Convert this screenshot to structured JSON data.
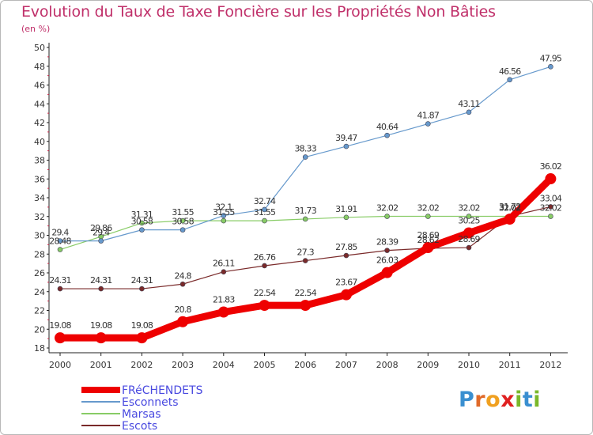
{
  "title": "Evolution du Taux de Taxe Foncière sur les Propriétés Non Bâties",
  "subtitle": "(en %)",
  "logo": {
    "text": "Proxiti",
    "letters": [
      {
        "ch": "P",
        "color": "#3a8fd0"
      },
      {
        "ch": "r",
        "color": "#e06a2a"
      },
      {
        "ch": "o",
        "color": "#f0a020"
      },
      {
        "ch": "x",
        "color": "#e02020"
      },
      {
        "ch": "i",
        "color": "#7ab82a"
      },
      {
        "ch": "t",
        "color": "#3a8fd0"
      },
      {
        "ch": "i",
        "color": "#7ab82a"
      }
    ]
  },
  "chart_data": {
    "type": "line",
    "title": "Evolution du Taux de Taxe Foncière sur les Propriétés Non Bâties",
    "ylabel": "(en %)",
    "x": [
      "2000",
      "2001",
      "2002",
      "2003",
      "2004",
      "2005",
      "2006",
      "2007",
      "2008",
      "2009",
      "2010",
      "2011",
      "2012"
    ],
    "ylim": [
      18,
      50
    ],
    "yticks": [
      18,
      20,
      22,
      24,
      26,
      28,
      30,
      32,
      34,
      36,
      38,
      40,
      42,
      44,
      46,
      48,
      50
    ],
    "grid": false,
    "legend": "bottom-left",
    "series": [
      {
        "name": "FRéCHENDETS",
        "color": "#ee0000",
        "values": [
          19.08,
          19.08,
          19.08,
          20.8,
          21.83,
          22.54,
          22.54,
          23.67,
          26.03,
          28.69,
          30.25,
          31.72,
          36.02
        ],
        "labels": [
          "19.08",
          "19.08",
          "19.08",
          "20.8",
          "21.83",
          "22.54",
          "22.54",
          "23.67",
          "26.03",
          "28.69",
          "30.25",
          "31.72",
          "36.02"
        ]
      },
      {
        "name": "Esconnets",
        "color": "#6699cc",
        "values": [
          29.4,
          29.4,
          30.58,
          30.58,
          32.1,
          32.74,
          38.33,
          39.47,
          40.64,
          41.87,
          43.11,
          46.56,
          47.95
        ],
        "labels": [
          "29.4",
          "29.4",
          "30.58",
          "30.58",
          "32.1",
          "32.74",
          "38.33",
          "39.47",
          "40.64",
          "41.87",
          "43.11",
          "46.56",
          "47.95"
        ]
      },
      {
        "name": "Marsas",
        "color": "#88cc66",
        "values": [
          28.48,
          29.86,
          31.31,
          31.55,
          31.55,
          31.55,
          31.73,
          31.91,
          32.02,
          32.02,
          32.02,
          32.02,
          32.02
        ],
        "labels": [
          "28.48",
          "29.86",
          "31.31",
          "31.55",
          "31.55",
          "31.55",
          "31.73",
          "31.91",
          "32.02",
          "32.02",
          "32.02",
          "32.02",
          "32.02"
        ]
      },
      {
        "name": "Escots",
        "color": "#7a2a2a",
        "values": [
          24.31,
          24.31,
          24.31,
          24.8,
          26.11,
          26.76,
          27.3,
          27.85,
          28.39,
          28.62,
          28.69,
          32.02,
          33.04
        ],
        "labels": [
          "24.31",
          "24.31",
          "24.31",
          "24.8",
          "26.11",
          "26.76",
          "27.3",
          "27.85",
          "28.39",
          "28.62",
          "28.69",
          "32.02",
          "33.04"
        ]
      }
    ]
  }
}
